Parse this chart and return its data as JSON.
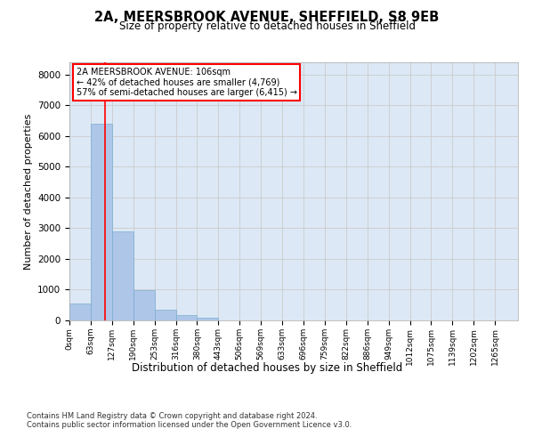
{
  "title": "2A, MEERSBROOK AVENUE, SHEFFIELD, S8 9EB",
  "subtitle": "Size of property relative to detached houses in Sheffield",
  "xlabel": "Distribution of detached houses by size in Sheffield",
  "ylabel": "Number of detached properties",
  "footer1": "Contains HM Land Registry data © Crown copyright and database right 2024.",
  "footer2": "Contains public sector information licensed under the Open Government Licence v3.0.",
  "bin_labels": [
    "0sqm",
    "63sqm",
    "127sqm",
    "190sqm",
    "253sqm",
    "316sqm",
    "380sqm",
    "443sqm",
    "506sqm",
    "569sqm",
    "633sqm",
    "696sqm",
    "759sqm",
    "822sqm",
    "886sqm",
    "949sqm",
    "1012sqm",
    "1075sqm",
    "1139sqm",
    "1202sqm",
    "1265sqm"
  ],
  "bar_values": [
    550,
    6400,
    2900,
    980,
    360,
    170,
    100,
    0,
    0,
    0,
    0,
    0,
    0,
    0,
    0,
    0,
    0,
    0,
    0,
    0
  ],
  "bar_color": "#aec6e8",
  "bar_edge_color": "#7aaed0",
  "ylim": [
    0,
    8400
  ],
  "yticks": [
    0,
    1000,
    2000,
    3000,
    4000,
    5000,
    6000,
    7000,
    8000
  ],
  "red_line_x": 106,
  "bin_width": 63,
  "annotation_text_line1": "2A MEERSBROOK AVENUE: 106sqm",
  "annotation_text_line2": "← 42% of detached houses are smaller (4,769)",
  "annotation_text_line3": "57% of semi-detached houses are larger (6,415) →",
  "grid_color": "#cccccc",
  "background_color": "#dce8f5"
}
